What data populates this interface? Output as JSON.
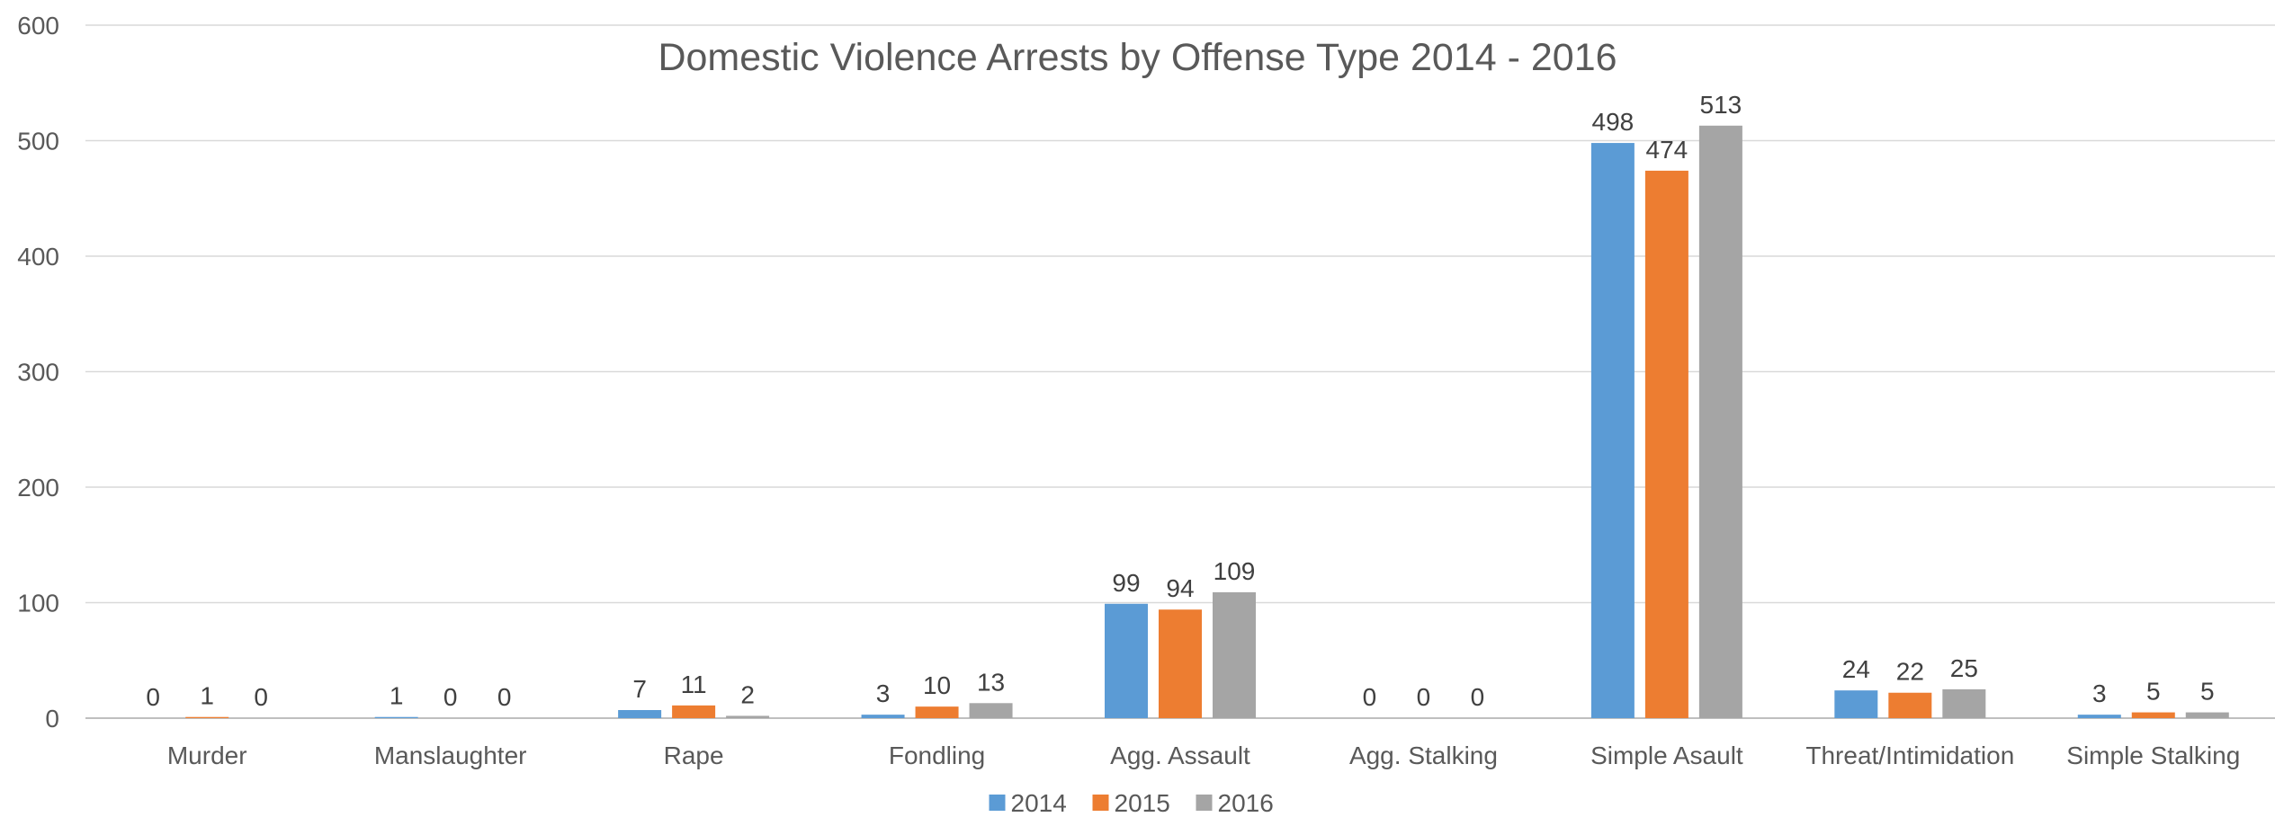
{
  "chart_data": {
    "type": "bar",
    "title": "Domestic Violence Arrests by Offense Type 2014 - 2016",
    "xlabel": "",
    "ylabel": "",
    "ylim": [
      0,
      600
    ],
    "yticks": [
      0,
      100,
      200,
      300,
      400,
      500,
      600
    ],
    "grid": true,
    "legend_position": "bottom",
    "categories": [
      "Murder",
      "Manslaughter",
      "Rape",
      "Fondling",
      "Agg. Assault",
      "Agg. Stalking",
      "Simple Asault",
      "Threat/Intimidation",
      "Simple Stalking"
    ],
    "series": [
      {
        "name": "2014",
        "color": "#5B9BD5",
        "values": [
          0,
          1,
          7,
          3,
          99,
          0,
          498,
          24,
          3
        ]
      },
      {
        "name": "2015",
        "color": "#ED7D31",
        "values": [
          1,
          0,
          11,
          10,
          94,
          0,
          474,
          22,
          5
        ]
      },
      {
        "name": "2016",
        "color": "#A5A5A5",
        "values": [
          0,
          0,
          2,
          13,
          109,
          0,
          513,
          25,
          5
        ]
      }
    ]
  }
}
